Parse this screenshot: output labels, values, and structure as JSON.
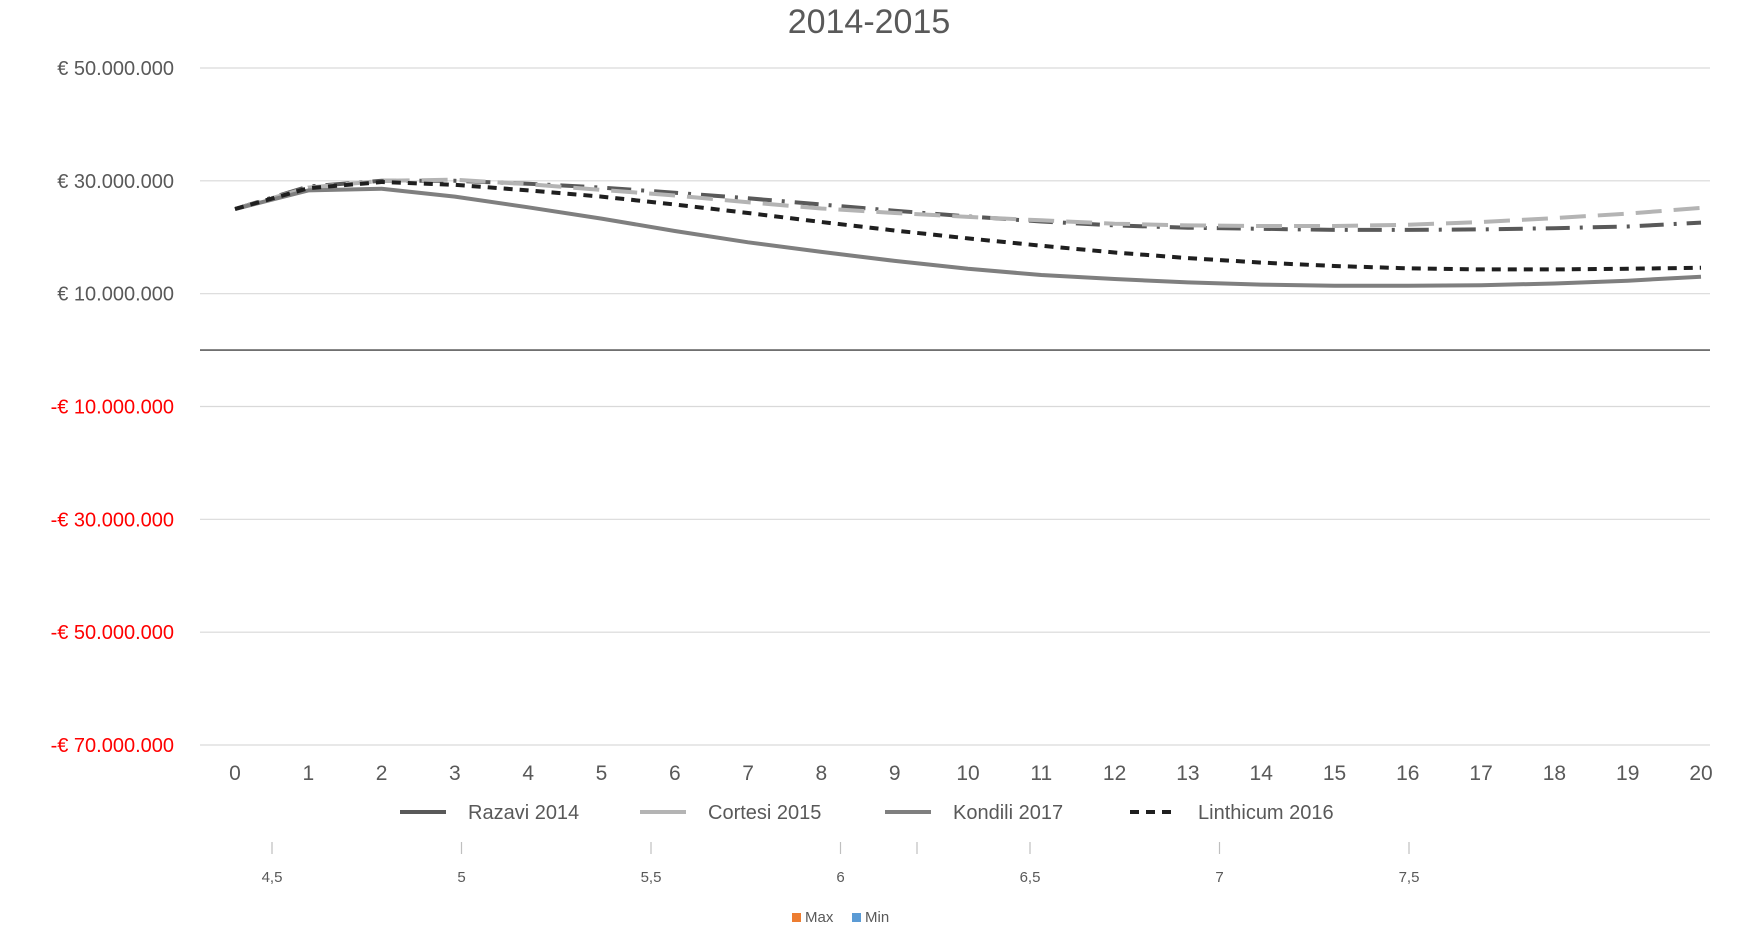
{
  "chart_data": {
    "type": "line",
    "title": "2014-2015",
    "xlabel": "",
    "ylabel": "",
    "categories": [
      0,
      1,
      2,
      3,
      4,
      5,
      6,
      7,
      8,
      9,
      10,
      11,
      12,
      13,
      14,
      15,
      16,
      17,
      18,
      19,
      20
    ],
    "ylim": [
      -70000000,
      50000000
    ],
    "y_ticks": [
      {
        "value": 50000000,
        "label": "€ 50.000.000",
        "negative": false
      },
      {
        "value": 30000000,
        "label": "€ 30.000.000",
        "negative": false
      },
      {
        "value": 10000000,
        "label": "€ 10.000.000",
        "negative": false
      },
      {
        "value": -10000000,
        "label": "-€ 10.000.000",
        "negative": true
      },
      {
        "value": -30000000,
        "label": "-€ 30.000.000",
        "negative": true
      },
      {
        "value": -50000000,
        "label": "-€ 50.000.000",
        "negative": true
      },
      {
        "value": -70000000,
        "label": "-€ 70.000.000",
        "negative": true
      }
    ],
    "grid": true,
    "legend_position": "bottom",
    "series": [
      {
        "name": "Razavi 2014",
        "color": "#595959",
        "dash": "dash-dot",
        "values": [
          25000000,
          29000000,
          30000000,
          30000000,
          29500000,
          28800000,
          27900000,
          26900000,
          25800000,
          24700000,
          23700000,
          22800000,
          22100000,
          21700000,
          21500000,
          21300000,
          21300000,
          21400000,
          21600000,
          21900000,
          22600000
        ]
      },
      {
        "name": "Cortesi 2015",
        "color": "#b4b4b4",
        "dash": "long-dash",
        "values": [
          25000000,
          28800000,
          30000000,
          30200000,
          29400000,
          28400000,
          27400000,
          26200000,
          25100000,
          24300000,
          23600000,
          23000000,
          22400000,
          22100000,
          22000000,
          22000000,
          22200000,
          22700000,
          23400000,
          24200000,
          25200000
        ]
      },
      {
        "name": "Kondili 2017",
        "color": "#7f7f7f",
        "dash": "solid",
        "values": [
          25000000,
          28300000,
          28600000,
          27200000,
          25300000,
          23300000,
          21100000,
          19100000,
          17400000,
          15800000,
          14400000,
          13300000,
          12600000,
          12000000,
          11600000,
          11400000,
          11400000,
          11500000,
          11800000,
          12300000,
          13000000
        ]
      },
      {
        "name": "Linthicum 2016",
        "color": "#1f1f1f",
        "dash": "short-dash",
        "values": [
          25000000,
          28700000,
          29800000,
          29300000,
          28300000,
          27200000,
          25800000,
          24300000,
          22700000,
          21200000,
          19800000,
          18500000,
          17300000,
          16300000,
          15500000,
          14900000,
          14500000,
          14300000,
          14300000,
          14400000,
          14600000
        ]
      }
    ]
  },
  "secondary_chart": {
    "x_ticks": [
      "4,5",
      "5",
      "5,5",
      "6",
      "6,5",
      "7",
      "7,5"
    ],
    "legend": [
      {
        "name": "Max",
        "color": "#ed7d31"
      },
      {
        "name": "Min",
        "color": "#5b9bd5"
      }
    ]
  }
}
